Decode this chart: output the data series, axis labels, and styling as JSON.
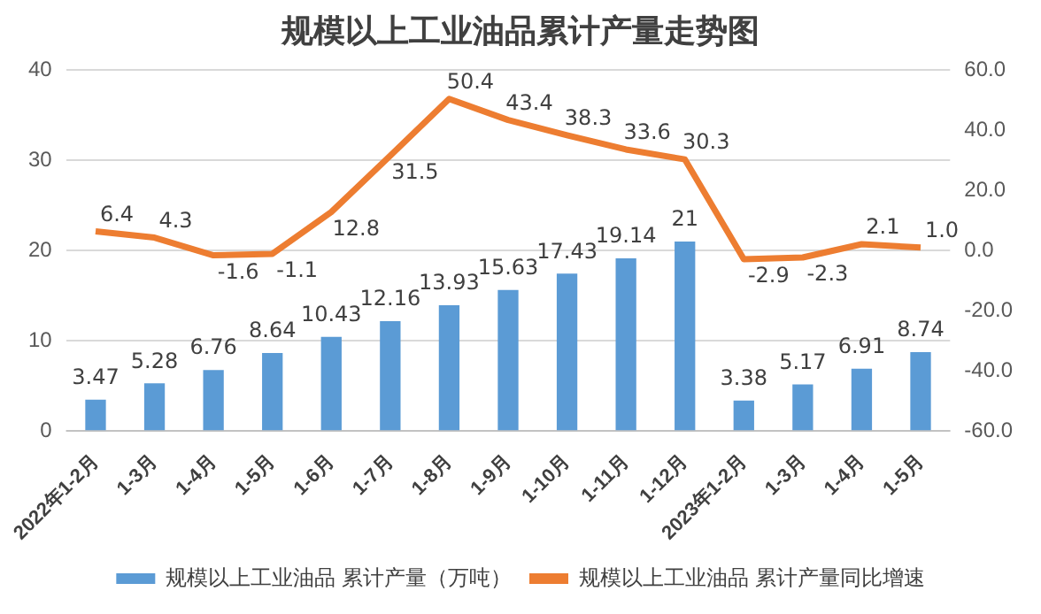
{
  "chart_data": {
    "type": "bar",
    "title": "规模以上工业油品累计产量走势图",
    "categories": [
      "2022年1-2月",
      "1-3月",
      "1-4月",
      "1-5月",
      "1-6月",
      "1-7月",
      "1-8月",
      "1-9月",
      "1-10月",
      "1-11月",
      "1-12月",
      "2023年1-2月",
      "1-3月",
      "1-4月",
      "1-5月"
    ],
    "series": [
      {
        "name": "规模以上工业油品 累计产量（万吨）",
        "color": "#5b9bd5",
        "values": [
          3.47,
          5.28,
          6.76,
          8.64,
          10.43,
          12.16,
          13.93,
          15.63,
          17.43,
          19.14,
          21,
          3.38,
          5.17,
          6.91,
          8.74
        ],
        "value_labels": [
          "3.47",
          "5.28",
          "6.76",
          "8.64",
          "10.43",
          "12.16",
          "13.93",
          "15.63",
          "17.43",
          "19.14",
          "21",
          "3.38",
          "5.17",
          "6.91",
          "8.74"
        ]
      },
      {
        "name": "规模以上工业油品 累计产量同比增速",
        "type": "line",
        "axis": "y2",
        "color": "#ed7d31",
        "values": [
          6.4,
          4.3,
          -1.6,
          -1.1,
          12.8,
          31.5,
          50.4,
          43.4,
          38.3,
          33.6,
          30.3,
          -2.9,
          -2.3,
          2.1,
          1.0
        ],
        "value_labels": [
          "6.4",
          "4.3",
          "-1.6",
          "-1.1",
          "12.8",
          "31.5",
          "50.4",
          "43.4",
          "38.3",
          "33.6",
          "30.3",
          "-2.9",
          "-2.3",
          "2.1",
          "1.0"
        ]
      }
    ],
    "ylim": [
      0,
      40
    ],
    "yticks": [
      0,
      10,
      20,
      30,
      40
    ],
    "y2lim": [
      -60,
      60
    ],
    "y2ticks": [
      {
        "value": -60,
        "label": "-60.0"
      },
      {
        "value": -40,
        "label": "-40.0"
      },
      {
        "value": -20,
        "label": "-20.0"
      },
      {
        "value": 0,
        "label": "0.0"
      },
      {
        "value": 20,
        "label": "20.0"
      },
      {
        "value": 40,
        "label": "40.0"
      },
      {
        "value": 60,
        "label": "60.0"
      }
    ],
    "grid": "y",
    "legend": "bottom",
    "marker": "none"
  }
}
